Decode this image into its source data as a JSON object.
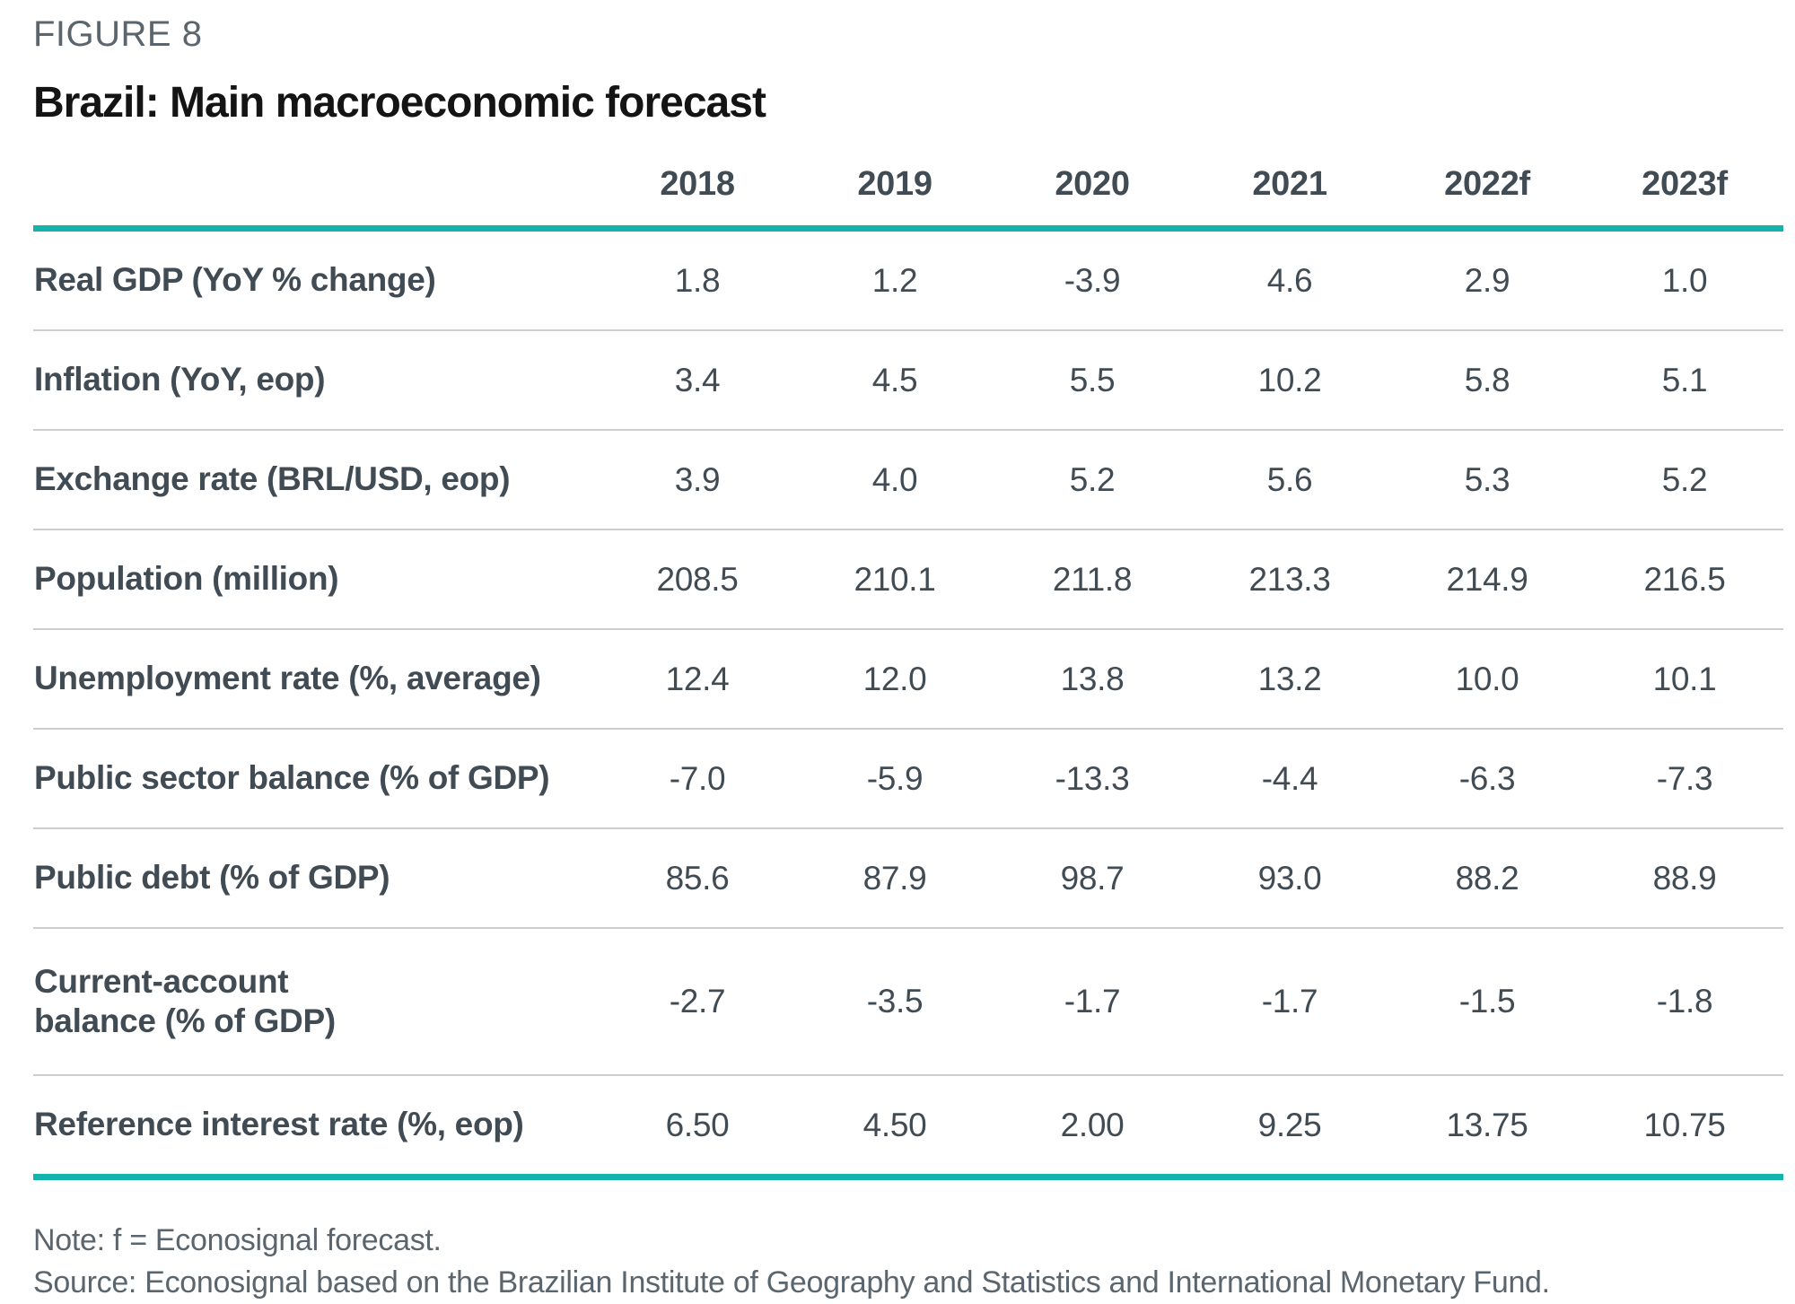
{
  "figure_label": "FIGURE 8",
  "title": "Brazil: Main macroeconomic forecast",
  "table": {
    "columns": [
      "2018",
      "2019",
      "2020",
      "2021",
      "2022f",
      "2023f"
    ],
    "rows": [
      {
        "label": "Real GDP (YoY % change)",
        "values": [
          "1.8",
          "1.2",
          "-3.9",
          "4.6",
          "2.9",
          "1.0"
        ]
      },
      {
        "label": "Inflation (YoY, eop)",
        "values": [
          "3.4",
          "4.5",
          "5.5",
          "10.2",
          "5.8",
          "5.1"
        ]
      },
      {
        "label": "Exchange rate (BRL/USD, eop)",
        "values": [
          "3.9",
          "4.0",
          "5.2",
          "5.6",
          "5.3",
          "5.2"
        ]
      },
      {
        "label": "Population (million)",
        "values": [
          "208.5",
          "210.1",
          "211.8",
          "213.3",
          "214.9",
          "216.5"
        ]
      },
      {
        "label": "Unemployment rate (%, average)",
        "values": [
          "12.4",
          "12.0",
          "13.8",
          "13.2",
          "10.0",
          "10.1"
        ]
      },
      {
        "label": "Public sector balance (% of GDP)",
        "values": [
          "-7.0",
          "-5.9",
          "-13.3",
          "-4.4",
          "-6.3",
          "-7.3"
        ]
      },
      {
        "label": "Public debt (% of GDP)",
        "values": [
          "85.6",
          "87.9",
          "98.7",
          "93.0",
          "88.2",
          "88.9"
        ]
      },
      {
        "label": "Current-account balance (% of GDP)",
        "label_lines": [
          "Current-account",
          "balance (% of GDP)"
        ],
        "values": [
          "-2.7",
          "-3.5",
          "-1.7",
          "-1.7",
          "-1.5",
          "-1.8"
        ]
      },
      {
        "label": "Reference interest rate (%, eop)",
        "values": [
          "6.50",
          "4.50",
          "2.00",
          "9.25",
          "13.75",
          "10.75"
        ]
      }
    ]
  },
  "chart_data": {
    "type": "table",
    "title": "Brazil: Main macroeconomic forecast",
    "columns": [
      "2018",
      "2019",
      "2020",
      "2021",
      "2022f",
      "2023f"
    ],
    "rows": [
      {
        "label": "Real GDP (YoY % change)",
        "values": [
          1.8,
          1.2,
          -3.9,
          4.6,
          2.9,
          1.0
        ]
      },
      {
        "label": "Inflation (YoY, eop)",
        "values": [
          3.4,
          4.5,
          5.5,
          10.2,
          5.8,
          5.1
        ]
      },
      {
        "label": "Exchange rate (BRL/USD, eop)",
        "values": [
          3.9,
          4.0,
          5.2,
          5.6,
          5.3,
          5.2
        ]
      },
      {
        "label": "Population (million)",
        "values": [
          208.5,
          210.1,
          211.8,
          213.3,
          214.9,
          216.5
        ]
      },
      {
        "label": "Unemployment rate (%, average)",
        "values": [
          12.4,
          12.0,
          13.8,
          13.2,
          10.0,
          10.1
        ]
      },
      {
        "label": "Public sector balance (% of GDP)",
        "values": [
          -7.0,
          -5.9,
          -13.3,
          -4.4,
          -6.3,
          -7.3
        ]
      },
      {
        "label": "Public debt (% of GDP)",
        "values": [
          85.6,
          87.9,
          98.7,
          93.0,
          88.2,
          88.9
        ]
      },
      {
        "label": "Current-account balance (% of GDP)",
        "values": [
          -2.7,
          -3.5,
          -1.7,
          -1.7,
          -1.5,
          -1.8
        ]
      },
      {
        "label": "Reference interest rate (%, eop)",
        "values": [
          6.5,
          4.5,
          2.0,
          9.25,
          13.75,
          10.75
        ]
      }
    ],
    "forecast_columns": [
      "2022f",
      "2023f"
    ],
    "footnote": "f = Econosignal forecast"
  },
  "colors": {
    "accent_teal": "#14b3ab",
    "text_dark": "#414b54",
    "text_gray": "#5b656d",
    "row_separator": "#cbced1"
  },
  "footnotes": {
    "note": "Note: f = Econosignal forecast.",
    "source": "Source: Econosignal based on the Brazilian Institute of Geography and Statistics and International Monetary Fund."
  }
}
